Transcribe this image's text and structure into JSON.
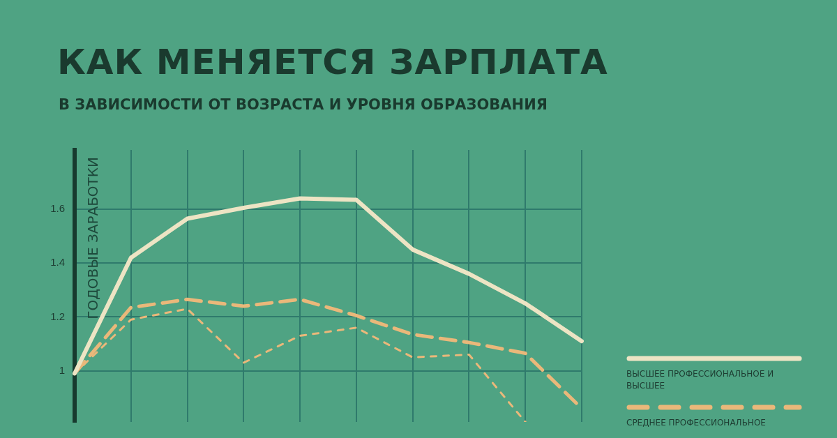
{
  "chart_data": {
    "type": "line",
    "title": "КАК МЕНЯЕТСЯ ЗАРПЛАТА",
    "subtitle": "В ЗАВИСИМОСТИ ОТ ВОЗРАСТА И УРОВНЯ ОБРАЗОВАНИЯ",
    "ylabel": "ГОДОВЫЕ ЗАРАБОТКИ",
    "categories": [
      null,
      null,
      null,
      null,
      null,
      null,
      null,
      null,
      null,
      null
    ],
    "series": [
      {
        "name": "ВЫСШЕЕ ПРОФЕССИОНАЛЬНОЕ И ВЫСШЕЕ",
        "color": "#ede4c4",
        "line_style": "solid",
        "values": [
          0.99,
          1.42,
          1.565,
          1.605,
          1.64,
          1.635,
          1.45,
          1.36,
          1.25,
          1.11
        ]
      },
      {
        "name": "СРЕДНЕЕ ПРОФЕССИОНАЛЬНОЕ",
        "color": "#eab87a",
        "line_style": "dashed",
        "values": [
          0.99,
          1.235,
          1.265,
          1.24,
          1.265,
          1.205,
          1.135,
          1.105,
          1.065,
          0.86
        ]
      },
      {
        "color": "#eab87a",
        "line_style": "dotted",
        "values": [
          0.99,
          1.19,
          1.23,
          1.03,
          1.13,
          1.16,
          1.05,
          1.06,
          0.81,
          null
        ]
      }
    ],
    "ylim": [
      0.81,
      1.82
    ],
    "yticks": [
      1,
      1.2,
      1.4,
      1.6
    ],
    "grid": true,
    "legend": "right",
    "tick_labels": "y",
    "marker": "none"
  }
}
